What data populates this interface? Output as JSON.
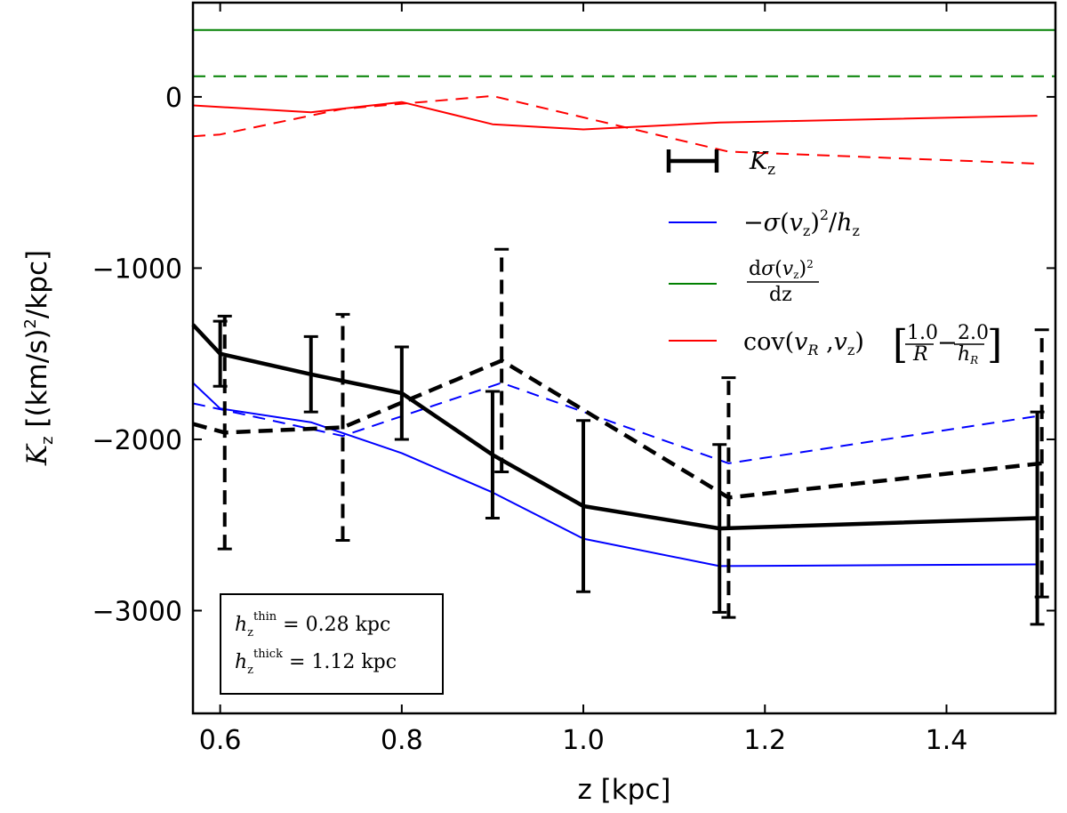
{
  "chart_data": {
    "type": "line",
    "xlabel": "z [kpc]",
    "ylabel": "K_z [(km/s)^2/kpc]",
    "xlim": [
      0.57,
      1.52
    ],
    "ylim": [
      -3600,
      550
    ],
    "xticks": [
      0.6,
      0.8,
      1.0,
      1.2,
      1.4
    ],
    "xtick_labels": [
      "0.6",
      "0.8",
      "1.0",
      "1.2",
      "1.4"
    ],
    "yticks": [
      0,
      -1000,
      -2000,
      -3000
    ],
    "ytick_labels": [
      "0",
      "−1000",
      "−2000",
      "−3000"
    ],
    "series": [
      {
        "key": "kz_thin",
        "name": "K_z (thin)",
        "color": "#000000",
        "style": "solid",
        "width": 4.5,
        "x": [
          0.57,
          0.6,
          0.7,
          0.8,
          0.9,
          1.0,
          1.15,
          1.5
        ],
        "y": [
          -1330,
          -1500,
          -1620,
          -1730,
          -2090,
          -2390,
          -2520,
          -2460
        ],
        "err": [
          null,
          190,
          220,
          270,
          370,
          500,
          490,
          620
        ]
      },
      {
        "key": "kz_thick",
        "name": "K_z (thick)",
        "color": "#000000",
        "style": "dashed",
        "width": 4.5,
        "x": [
          0.57,
          0.605,
          0.735,
          0.91,
          1.16,
          1.505
        ],
        "y": [
          -1910,
          -1960,
          -1930,
          -1540,
          -2340,
          -2140
        ],
        "err": [
          null,
          680,
          660,
          650,
          700,
          780
        ]
      },
      {
        "key": "sigma_thin",
        "name": "-sigma(v_z)^2/h_z (thin)",
        "color": "#0000ff",
        "style": "solid",
        "width": 2,
        "x": [
          0.57,
          0.6,
          0.7,
          0.8,
          0.9,
          1.0,
          1.15,
          1.5
        ],
        "y": [
          -1670,
          -1820,
          -1900,
          -2080,
          -2310,
          -2580,
          -2740,
          -2730
        ],
        "err": null
      },
      {
        "key": "sigma_thick",
        "name": "-sigma(v_z)^2/h_z (thick)",
        "color": "#0000ff",
        "style": "dashed",
        "width": 2,
        "x": [
          0.57,
          0.605,
          0.735,
          0.91,
          1.16,
          1.505
        ],
        "y": [
          -1790,
          -1830,
          -1980,
          -1670,
          -2140,
          -1860
        ],
        "err": null
      },
      {
        "key": "dsig_thin",
        "name": "d sigma(v_z)^2/dz (thin)",
        "color": "#008000",
        "style": "solid",
        "width": 2,
        "x": [
          0.57,
          1.52
        ],
        "y": [
          390,
          390
        ],
        "err": null
      },
      {
        "key": "dsig_thick",
        "name": "d sigma(v_z)^2/dz (thick)",
        "color": "#008000",
        "style": "dashed",
        "width": 2,
        "x": [
          0.57,
          1.52
        ],
        "y": [
          120,
          120
        ],
        "err": null
      },
      {
        "key": "cov_thin",
        "name": "cov(v_R, v_z) term (thin)",
        "color": "#ff0000",
        "style": "solid",
        "width": 2,
        "x": [
          0.57,
          0.7,
          0.8,
          0.9,
          1.0,
          1.15,
          1.5
        ],
        "y": [
          -50,
          -90,
          -30,
          -160,
          -190,
          -150,
          -110
        ],
        "err": null
      },
      {
        "key": "cov_thick",
        "name": "cov(v_R, v_z) term (thick)",
        "color": "#ff0000",
        "style": "dashed",
        "width": 2,
        "x": [
          0.57,
          0.6,
          0.735,
          0.9,
          1.16,
          1.5
        ],
        "y": [
          -230,
          -220,
          -70,
          5,
          -320,
          -390
        ],
        "err": null
      }
    ],
    "legend": {
      "placement": "upper-right",
      "entries": [
        {
          "label": "K_z",
          "color": "#000000",
          "marker": "errorbar"
        },
        {
          "label": "−σ(v_z)²/h_z",
          "color": "#0000ff",
          "marker": "line"
        },
        {
          "label": "dσ(v_z)² / dz",
          "color": "#008000",
          "marker": "line"
        },
        {
          "label": "cov(v_R ,v_z)[1.0/R − 2.0/h_R]",
          "color": "#ff0000",
          "marker": "line"
        }
      ]
    },
    "annotation": {
      "placement": "lower-left",
      "thin_label": "h_z^thin = 0.28 kpc",
      "thick_label": "h_z^thick = 1.12 kpc"
    }
  }
}
